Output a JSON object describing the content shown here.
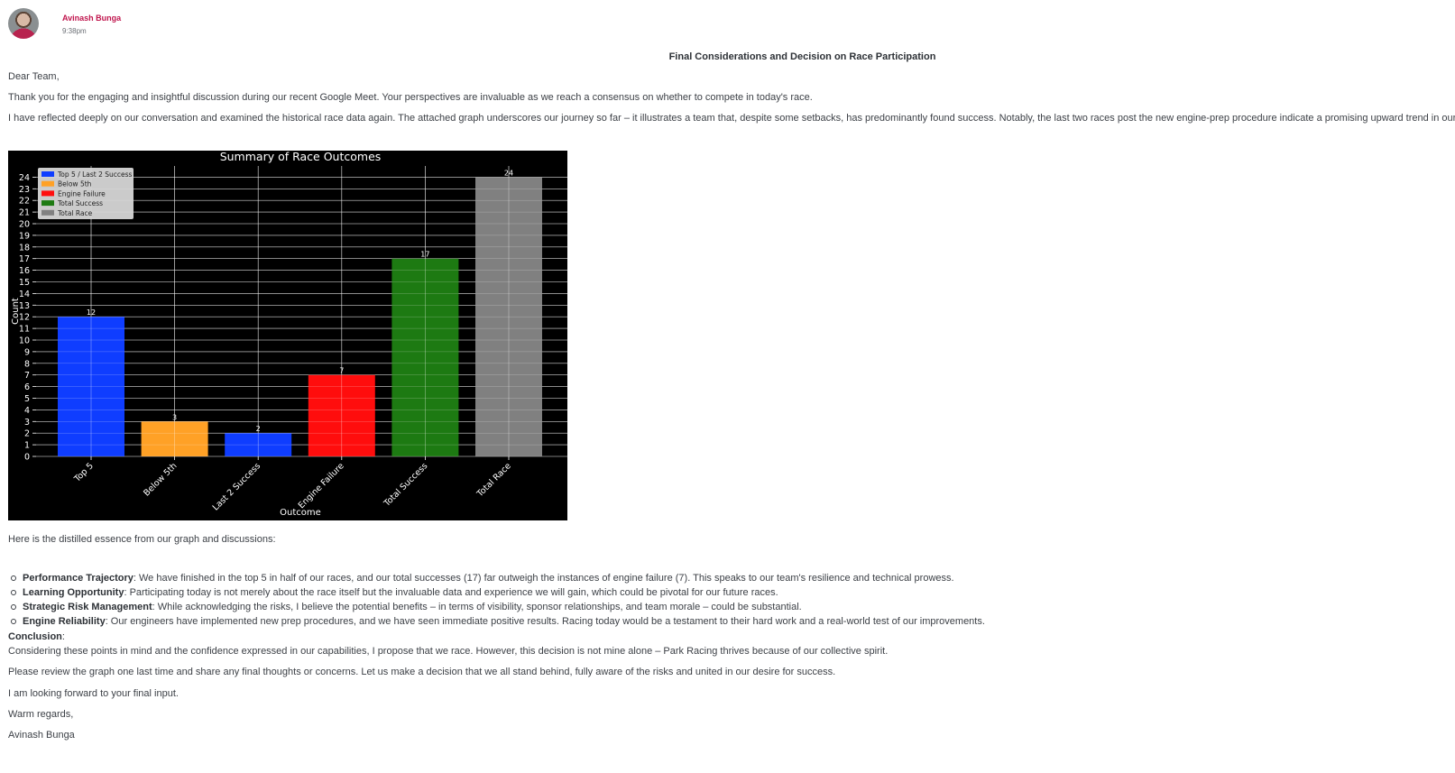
{
  "message": {
    "author": "Avinash Bunga",
    "time": "9:38pm",
    "subject": "Final Considerations and Decision on Race Participation",
    "greeting": "Dear Team,",
    "para1": "Thank you for the engaging and insightful discussion during our recent Google Meet. Your perspectives are invaluable as we reach a consensus on whether to compete in today's race.",
    "para2": "I have reflected deeply on our conversation and examined the historical race data again. The attached graph underscores our journey so far – it illustrates a team that, despite some setbacks, has predominantly found success. Notably, the last two races post the new engine-prep procedure indicate a promising upward trend in our performance.",
    "intro_points": "Here is the distilled essence from our graph and discussions:",
    "points": [
      {
        "title": "Performance Trajectory",
        "text": ": We have finished in the top 5 in half of our races, and our total successes (17) far outweigh the instances of engine failure (7). This speaks to our team's resilience and technical prowess."
      },
      {
        "title": "Learning Opportunity",
        "text": ": Participating today is not merely about the race itself but the invaluable data and experience we will gain, which could be pivotal for our future races."
      },
      {
        "title": "Strategic Risk Management",
        "text": ": While acknowledging the risks, I believe the potential benefits – in terms of visibility, sponsor relationships, and team morale – could be substantial."
      },
      {
        "title": "Engine Reliability",
        "text": ": Our engineers have implemented new prep procedures, and we have seen immediate positive results. Racing today would be a testament to their hard work and a real-world test of our improvements."
      }
    ],
    "conclusion_heading": "Conclusion",
    "conclusion_colon": ":",
    "conclusion_text": "Considering these points in mind and the confidence expressed in our capabilities, I propose that we race. However, this decision is not mine alone – Park Racing thrives because of our collective spirit.",
    "para_review": "Please review the graph one last time and share any final thoughts or concerns. Let us make a decision that we all stand behind, fully aware of the risks and united in our desire for success.",
    "para_forward": "I am looking forward to your final input.",
    "signoff": "Warm regards,",
    "signature": "Avinash Bunga"
  },
  "chart_data": {
    "type": "bar",
    "title": "Summary of Race Outcomes",
    "xlabel": "Outcome",
    "ylabel": "Count",
    "ylim": [
      0,
      25
    ],
    "yticks": [
      0,
      1,
      2,
      3,
      4,
      5,
      6,
      7,
      8,
      9,
      10,
      11,
      12,
      13,
      14,
      15,
      16,
      17,
      18,
      19,
      20,
      21,
      22,
      23,
      24
    ],
    "grid": true,
    "legend_position": "top-left",
    "categories": [
      "Top 5",
      "Below 5th",
      "Last 2 Success",
      "Engine Failure",
      "Total Success",
      "Total Race"
    ],
    "values": [
      12,
      3,
      2,
      7,
      17,
      24
    ],
    "colors": [
      "#0f3dff",
      "#ffa126",
      "#0f3dff",
      "#ff0d0d",
      "#1d7a12",
      "#808080"
    ],
    "legend": [
      {
        "label": "Top 5 / Last 2 Success",
        "color": "#0f3dff"
      },
      {
        "label": "Below 5th",
        "color": "#ffa126"
      },
      {
        "label": "Engine Failure",
        "color": "#ff0d0d"
      },
      {
        "label": "Total Success",
        "color": "#1d7a12"
      },
      {
        "label": "Total Race",
        "color": "#808080"
      }
    ]
  }
}
